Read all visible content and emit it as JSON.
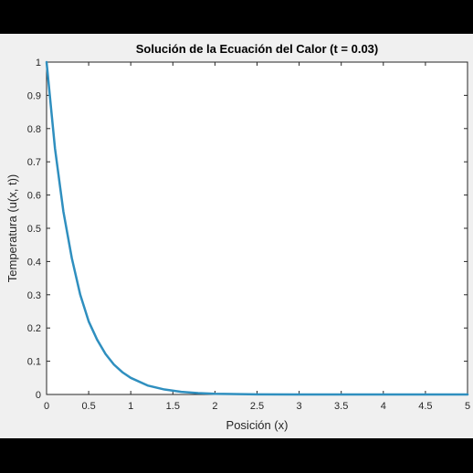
{
  "chart_data": {
    "type": "line",
    "title": "Solución de la Ecuación del Calor (t = 0.03)",
    "xlabel": "Posición (x)",
    "ylabel": "Temperatura (u(x, t))",
    "xlim": [
      0,
      5
    ],
    "ylim": [
      0,
      1
    ],
    "x_ticks": [
      "0",
      "0.5",
      "1",
      "1.5",
      "2",
      "2.5",
      "3",
      "3.5",
      "4",
      "4.5",
      "5"
    ],
    "y_ticks": [
      "0",
      "0.1",
      "0.2",
      "0.3",
      "0.4",
      "0.5",
      "0.6",
      "0.7",
      "0.8",
      "0.9",
      "1"
    ],
    "grid": false,
    "series": [
      {
        "color": "#2f8fbf",
        "x": [
          0,
          0.1,
          0.2,
          0.3,
          0.4,
          0.5,
          0.6,
          0.7,
          0.8,
          0.9,
          1.0,
          1.2,
          1.4,
          1.6,
          1.8,
          2.0,
          2.5,
          3.0,
          3.5,
          4.0,
          4.5,
          5.0
        ],
        "y": [
          1.0,
          0.74,
          0.55,
          0.41,
          0.3,
          0.22,
          0.165,
          0.122,
          0.09,
          0.067,
          0.05,
          0.027,
          0.015,
          0.008,
          0.004,
          0.002,
          0.0005,
          0.0,
          0.0,
          0.0,
          0.0,
          0.0
        ]
      }
    ]
  }
}
